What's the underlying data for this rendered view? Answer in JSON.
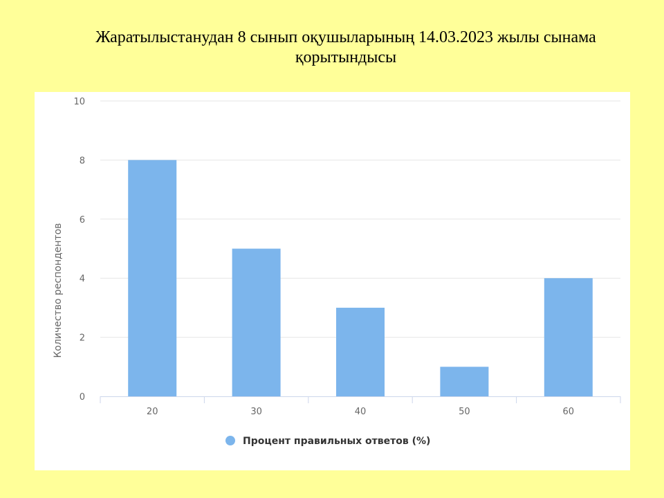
{
  "slide": {
    "title": "Жаратылыстанудан  8 сынып оқушыларының 14.03.2023 жылы сынама қорытындысы"
  },
  "colors": {
    "background": "#FFFF99",
    "panel": "#FFFFFF",
    "bar": "#7CB5EC",
    "grid": "#E6E6E6",
    "axis": "#CCD6EB",
    "text": "#666666",
    "legend_text": "#333333"
  },
  "chart_data": {
    "type": "bar",
    "categories": [
      "20",
      "30",
      "40",
      "50",
      "60"
    ],
    "series": [
      {
        "name": "Процент правильных ответов (%)",
        "values": [
          8,
          5,
          3,
          1,
          4
        ]
      }
    ],
    "ylabel": "Количество респондентов",
    "xlabel": "",
    "ylim": [
      0,
      10
    ],
    "yticks": [
      "0",
      "2",
      "4",
      "6",
      "8",
      "10"
    ],
    "grid": true,
    "legend_position": "bottom-center"
  }
}
